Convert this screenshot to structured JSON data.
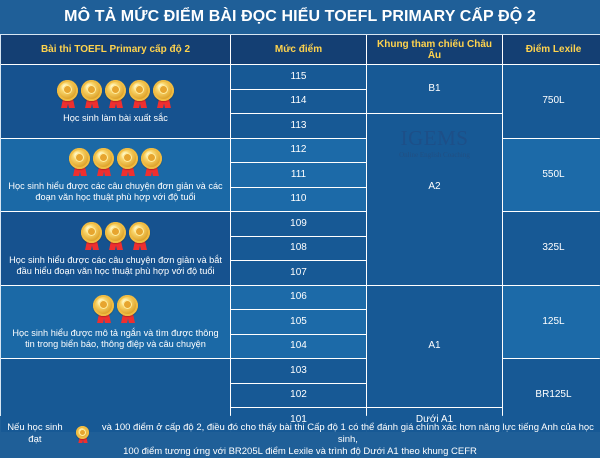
{
  "title": "MÔ TẢ MỨC ĐIỂM BÀI ĐỌC HIỂU TOEFL PRIMARY CẤP ĐỘ 2",
  "headers": {
    "test": "Bài thi TOEFL Primary cấp độ 2",
    "score": "Mức điểm",
    "cefr": "Khung tham chiếu Châu Âu",
    "lexile": "Điểm Lexile"
  },
  "groups": [
    {
      "medals": 5,
      "text": "Học sinh làm bài xuất sắc"
    },
    {
      "medals": 4,
      "text": "Học sinh hiểu được các câu chuyện đơn giản và các đoạn văn học thuật phù hợp với độ tuổi"
    },
    {
      "medals": 3,
      "text": "Học sinh hiểu được các câu chuyện đơn giản và bắt đầu hiểu đoạn văn học thuật phù hợp với độ tuổi"
    },
    {
      "medals": 2,
      "text": "Học sinh hiểu được mô tả ngắn và tìm được thông tin trong biển báo, thông điệp và câu chuyện"
    }
  ],
  "scores": [
    "115",
    "114",
    "113",
    "112",
    "111",
    "110",
    "109",
    "108",
    "107",
    "106",
    "105",
    "104",
    "103",
    "102",
    "101"
  ],
  "cefr": {
    "b1": "B1",
    "a2": "A2",
    "a1": "A1",
    "below_a1": "Dưới A1"
  },
  "lexile": {
    "l750": "750L",
    "l550": "550L",
    "l325": "325L",
    "l125": "125L",
    "br125": "BR125L"
  },
  "logo": {
    "main": "IGEMS",
    "sub": "Online English Coaching"
  },
  "footer": {
    "prefix": "Nếu học sinh đạt",
    "line1_suffix": "và 100 điểm ở cấp độ 2, điều đó cho thấy bài thi Cấp độ 1 có thể đánh giá chính xác hơn năng lực tiếng Anh của học sinh,",
    "line2": "100 điểm tương ứng với BR205L điểm Lexile và trình độ Dưới A1 theo khung CEFR"
  },
  "colors": {
    "background": "#1f5f98",
    "header": "#143f73",
    "header_text": "#ffd34d",
    "cell": "#175995",
    "light_cell": "#1c6aa8"
  }
}
